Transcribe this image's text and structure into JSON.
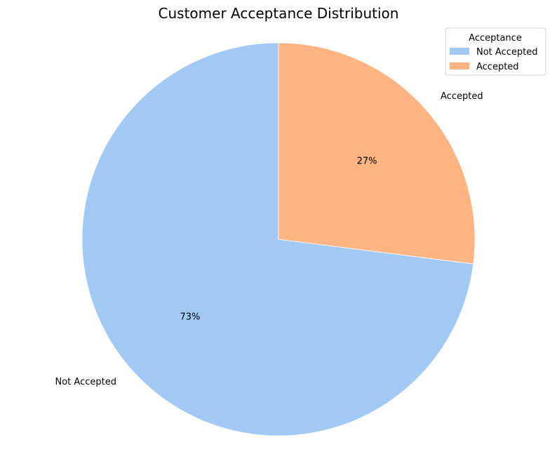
{
  "chart_data": {
    "type": "pie",
    "title": "Customer Acceptance Distribution",
    "slices": [
      {
        "label": "Not Accepted",
        "value": 73,
        "pct_label": "73%",
        "color": "#a1c9f4"
      },
      {
        "label": "Accepted",
        "value": 27,
        "pct_label": "27%",
        "color": "#ffb482"
      }
    ],
    "start_angle_deg": 90,
    "direction": "counterclockwise",
    "legend": {
      "title": "Acceptance",
      "placement": "top-right",
      "entries": [
        "Not Accepted",
        "Accepted"
      ]
    }
  }
}
